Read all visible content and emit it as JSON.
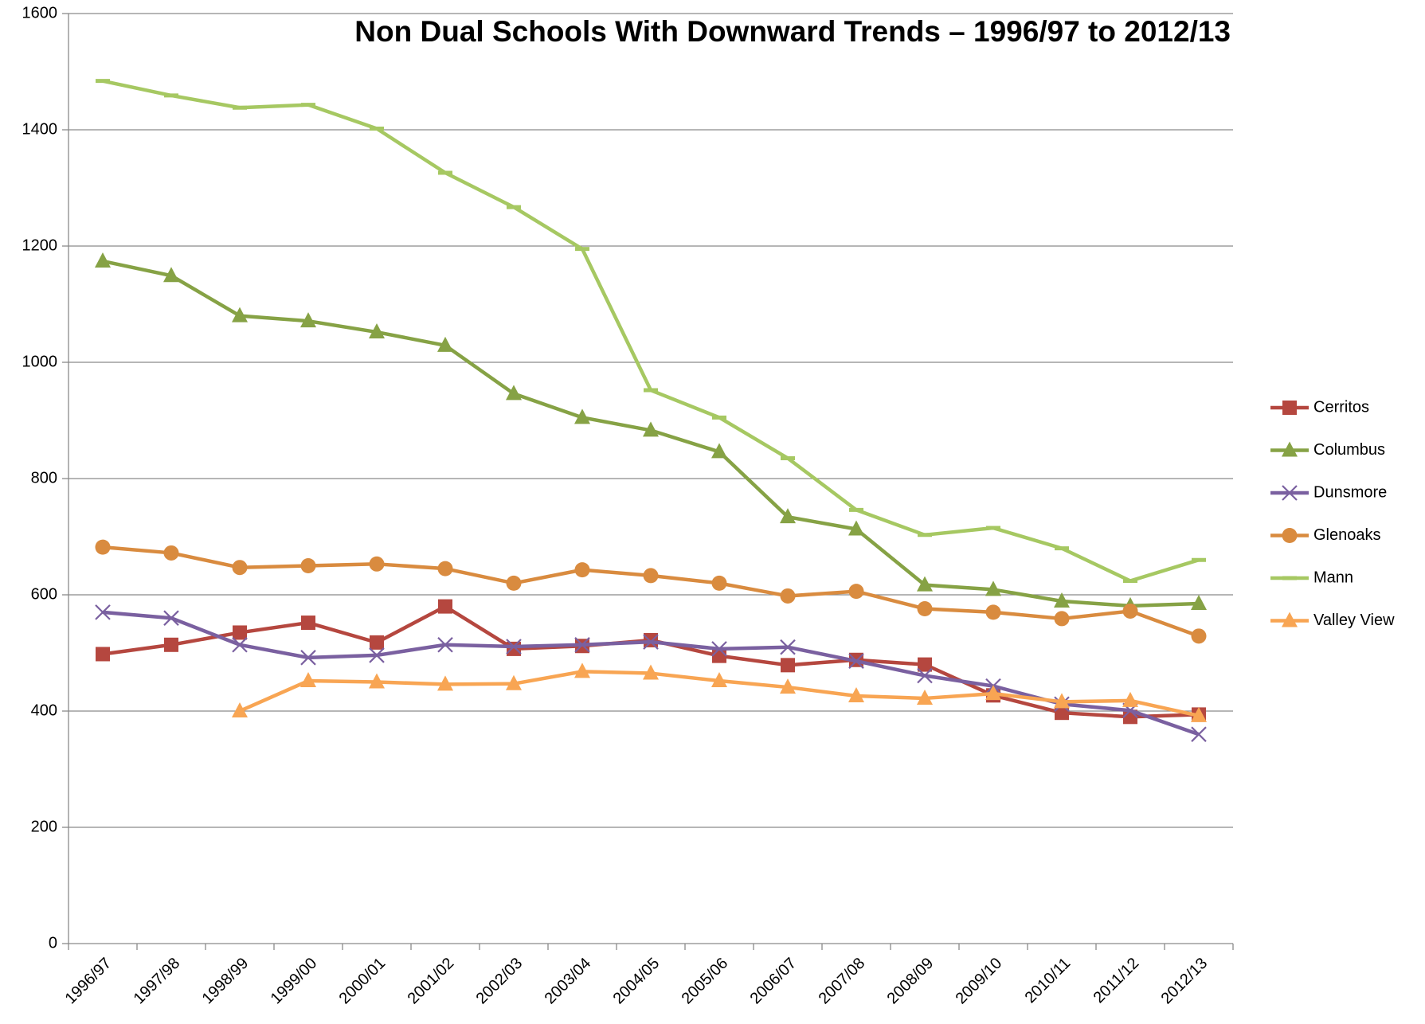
{
  "chart_data": {
    "type": "line",
    "title": "Non Dual Schools With Downward Trends – 1996/97 to 2012/13",
    "categories": [
      "1996/97",
      "1997/98",
      "1998/99",
      "1999/00",
      "2000/01",
      "2001/02",
      "2002/03",
      "2003/04",
      "2004/05",
      "2005/06",
      "2006/07",
      "2007/08",
      "2008/09",
      "2009/10",
      "2010/11",
      "2011/12",
      "2012/13"
    ],
    "series": [
      {
        "name": "Cerritos",
        "color": "#b5473f",
        "marker": "square",
        "values": [
          498,
          514,
          535,
          552,
          518,
          580,
          507,
          512,
          522,
          495,
          479,
          488,
          480,
          427,
          397,
          390,
          394
        ]
      },
      {
        "name": "Columbus",
        "color": "#86a245",
        "marker": "triangle",
        "values": [
          1174,
          1149,
          1080,
          1071,
          1052,
          1029,
          946,
          905,
          883,
          846,
          734,
          713,
          617,
          609,
          589,
          581,
          585
        ]
      },
      {
        "name": "Dunsmore",
        "color": "#7a60a0",
        "marker": "x",
        "values": [
          570,
          560,
          514,
          492,
          496,
          514,
          511,
          514,
          519,
          507,
          510,
          486,
          461,
          443,
          412,
          401,
          360
        ]
      },
      {
        "name": "Glenoaks",
        "color": "#d98b3f",
        "marker": "circle",
        "values": [
          682,
          672,
          647,
          650,
          653,
          645,
          620,
          643,
          633,
          620,
          598,
          606,
          576,
          570,
          559,
          572,
          529
        ]
      },
      {
        "name": "Mann",
        "color": "#a6c862",
        "marker": "dash",
        "values": [
          1484,
          1459,
          1438,
          1443,
          1402,
          1326,
          1267,
          1195,
          952,
          905,
          835,
          746,
          703,
          715,
          680,
          624,
          660
        ]
      },
      {
        "name": "Valley View",
        "color": "#f8a553",
        "marker": "triangle",
        "values": [
          null,
          null,
          400,
          452,
          450,
          446,
          447,
          468,
          465,
          452,
          441,
          426,
          422,
          430,
          416,
          418,
          392
        ]
      }
    ],
    "ylim": [
      0,
      1600
    ],
    "yticks": [
      0,
      200,
      400,
      600,
      800,
      1000,
      1200,
      1400,
      1600
    ],
    "grid": true,
    "legend": "right"
  }
}
